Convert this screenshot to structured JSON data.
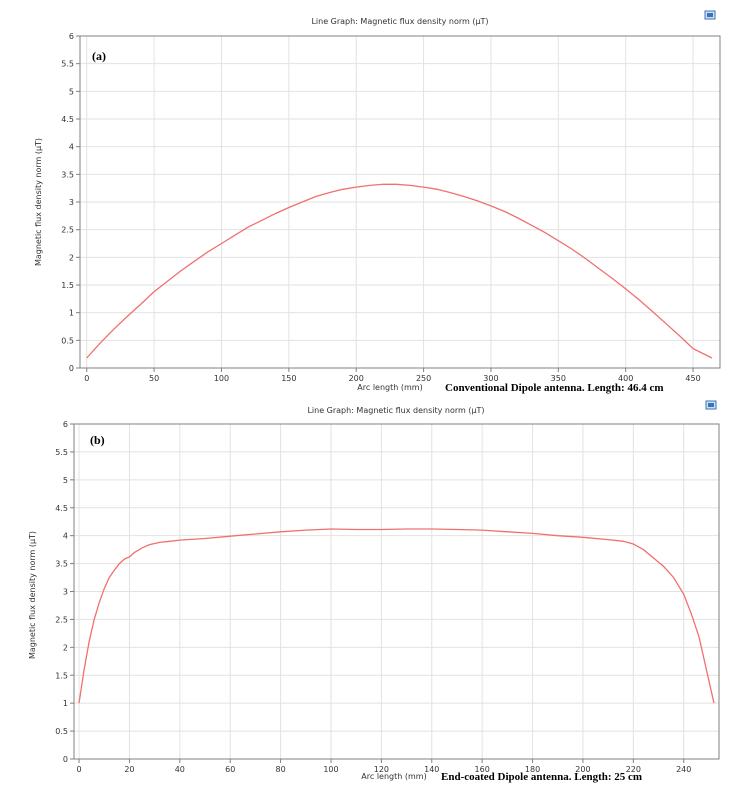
{
  "chart_data": [
    {
      "type": "line",
      "panel_label": "(a)",
      "title": "Line Graph: Magnetic flux density norm (µT)",
      "xlabel": "Arc length (mm)",
      "ylabel": "Magnetic flux density norm (µT)",
      "caption": "Conventional Dipole antenna. Length:  46.4 cm",
      "xlim": [
        -5,
        470
      ],
      "ylim": [
        0,
        6
      ],
      "xticks": [
        0,
        50,
        100,
        150,
        200,
        250,
        300,
        350,
        400,
        450
      ],
      "yticks": [
        0,
        0.5,
        1,
        1.5,
        2,
        2.5,
        3,
        3.5,
        4,
        4.5,
        5,
        5.5,
        6
      ],
      "ytick_labels": [
        "0",
        "0.5",
        "1",
        "1.5",
        "2",
        "2.5",
        "3",
        "3.5",
        "4",
        "4.5",
        "5",
        "5.5",
        "6"
      ],
      "grid": true,
      "line_color": "#f07070",
      "series": [
        {
          "x": [
            0,
            10,
            20,
            30,
            40,
            50,
            60,
            70,
            80,
            90,
            100,
            110,
            120,
            130,
            140,
            150,
            160,
            170,
            180,
            190,
            200,
            210,
            220,
            230,
            240,
            250,
            260,
            270,
            280,
            290,
            300,
            310,
            320,
            330,
            340,
            350,
            360,
            370,
            380,
            390,
            400,
            410,
            420,
            430,
            440,
            450,
            464
          ],
          "y": [
            0.18,
            0.45,
            0.7,
            0.93,
            1.15,
            1.38,
            1.57,
            1.76,
            1.93,
            2.1,
            2.25,
            2.4,
            2.55,
            2.67,
            2.79,
            2.9,
            3.0,
            3.1,
            3.17,
            3.23,
            3.27,
            3.3,
            3.32,
            3.32,
            3.3,
            3.27,
            3.23,
            3.17,
            3.1,
            3.02,
            2.93,
            2.83,
            2.71,
            2.58,
            2.45,
            2.3,
            2.15,
            1.98,
            1.8,
            1.62,
            1.43,
            1.23,
            1.02,
            0.8,
            0.58,
            0.35,
            0.18
          ]
        }
      ]
    },
    {
      "type": "line",
      "panel_label": "(b)",
      "title": "Line Graph: Magnetic flux density norm (µT)",
      "xlabel": "Arc length (mm)",
      "ylabel": "Magnetic flux density norm (µT)",
      "caption": "End-coated Dipole antenna. Length:  25 cm",
      "xlim": [
        -2,
        254
      ],
      "ylim": [
        0,
        6
      ],
      "xticks": [
        0,
        20,
        40,
        60,
        80,
        100,
        120,
        140,
        160,
        180,
        200,
        220,
        240
      ],
      "yticks": [
        0,
        0.5,
        1,
        1.5,
        2,
        2.5,
        3,
        3.5,
        4,
        4.5,
        5,
        5.5,
        6
      ],
      "ytick_labels": [
        "0",
        "0.5",
        "1",
        "1.5",
        "2",
        "2.5",
        "3",
        "3.5",
        "4",
        "4.5",
        "5",
        "5.5",
        "6"
      ],
      "grid": true,
      "line_color": "#f07070",
      "series": [
        {
          "x": [
            0,
            2,
            4,
            6,
            8,
            10,
            12,
            14,
            16,
            18,
            20,
            22,
            25,
            28,
            32,
            36,
            40,
            50,
            60,
            70,
            80,
            90,
            100,
            110,
            120,
            130,
            140,
            150,
            160,
            170,
            180,
            190,
            200,
            210,
            216,
            220,
            224,
            228,
            232,
            236,
            240,
            243,
            246,
            248,
            250,
            252
          ],
          "y": [
            1.0,
            1.6,
            2.1,
            2.5,
            2.8,
            3.05,
            3.25,
            3.38,
            3.5,
            3.58,
            3.62,
            3.7,
            3.78,
            3.84,
            3.88,
            3.9,
            3.92,
            3.95,
            3.99,
            4.03,
            4.07,
            4.1,
            4.12,
            4.11,
            4.11,
            4.12,
            4.12,
            4.11,
            4.1,
            4.07,
            4.04,
            4.0,
            3.97,
            3.93,
            3.9,
            3.85,
            3.75,
            3.6,
            3.45,
            3.25,
            2.95,
            2.6,
            2.2,
            1.8,
            1.4,
            1.0
          ]
        }
      ]
    }
  ]
}
